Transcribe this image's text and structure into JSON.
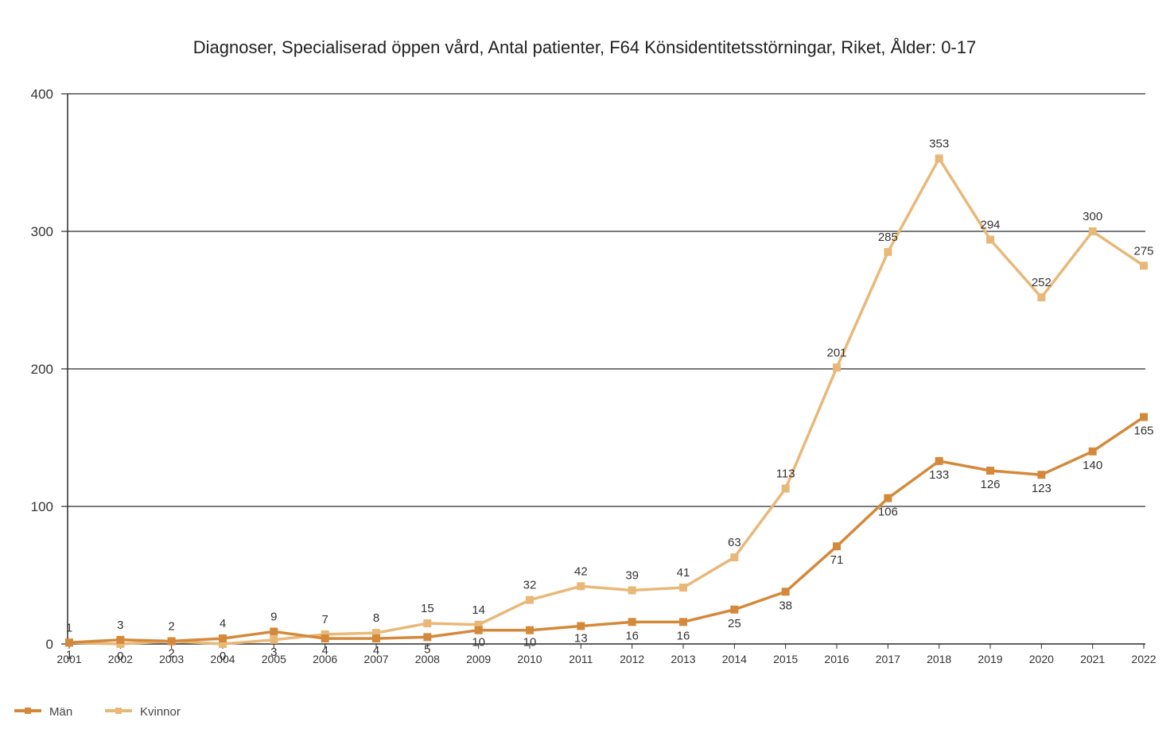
{
  "chart_data": {
    "type": "line",
    "title": "Diagnoser, Specialiserad öppen vård, Antal patienter, F64 Könsidentitetsstörningar, Riket, Ålder: 0-17",
    "xlabel": "",
    "ylabel": "",
    "ylim": [
      0,
      400
    ],
    "yticks": [
      0,
      100,
      200,
      300,
      400
    ],
    "grid": true,
    "legend_position": "bottom-left",
    "x": [
      "2001",
      "2002",
      "2003",
      "2004",
      "2005",
      "2006",
      "2007",
      "2008",
      "2009",
      "2010",
      "2011",
      "2012",
      "2013",
      "2014",
      "2015",
      "2016",
      "2017",
      "2018",
      "2019",
      "2020",
      "2021",
      "2022"
    ],
    "series": [
      {
        "name": "Män",
        "color": "#d4893a",
        "values": [
          1,
          3,
          2,
          4,
          9,
          4,
          4,
          5,
          10,
          10,
          13,
          16,
          16,
          25,
          38,
          71,
          106,
          133,
          126,
          123,
          140,
          165
        ]
      },
      {
        "name": "Kvinnor",
        "color": "#e8b878",
        "values": [
          1,
          0,
          2,
          0,
          3,
          7,
          8,
          15,
          14,
          32,
          42,
          39,
          41,
          63,
          113,
          201,
          285,
          353,
          294,
          252,
          300,
          275
        ]
      }
    ]
  }
}
